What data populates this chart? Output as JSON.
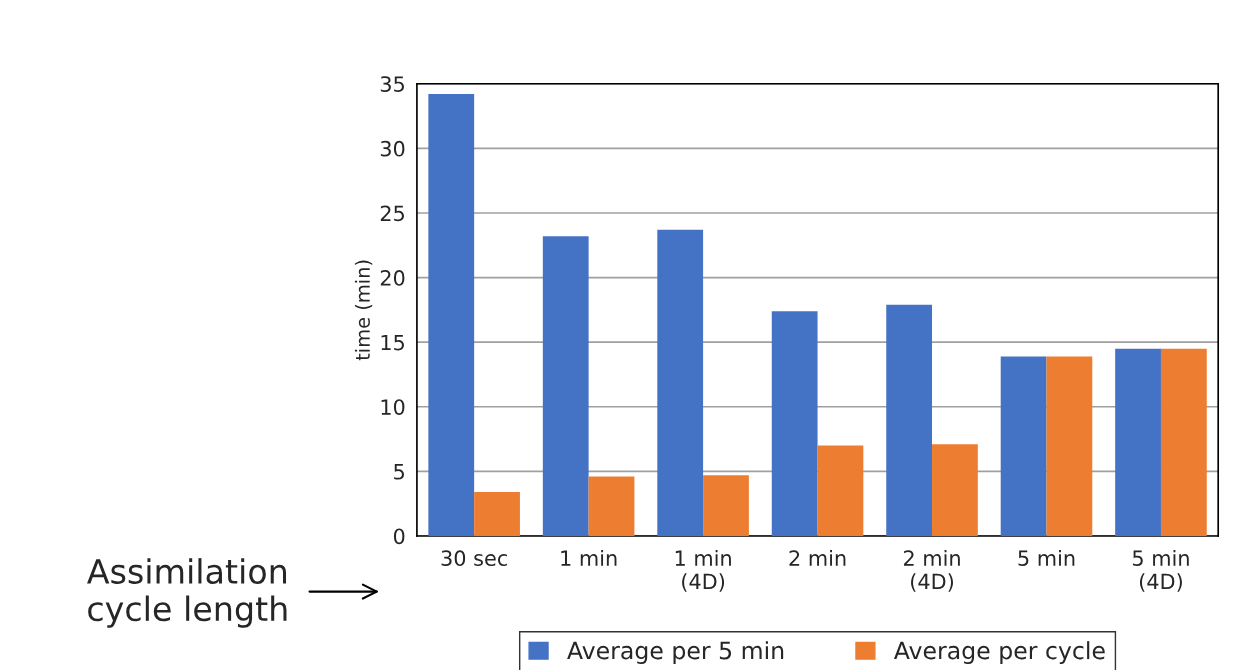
{
  "chart_data": {
    "type": "bar",
    "ylabel": "time (min)",
    "categories": [
      "30 sec",
      "1 min",
      "1 min\n(4D)",
      "2 min",
      "2 min\n(4D)",
      "5 min",
      "5 min\n(4D)"
    ],
    "series": [
      {
        "name": "Average per 5 min",
        "color": "#4472c4",
        "values": [
          34.2,
          23.2,
          23.7,
          17.4,
          17.9,
          13.9,
          14.5
        ]
      },
      {
        "name": "Average per cycle",
        "color": "#ed7d31",
        "values": [
          3.4,
          4.6,
          4.7,
          7.0,
          7.1,
          13.9,
          14.5
        ]
      }
    ],
    "ylim": [
      0,
      35
    ],
    "yticks": [
      0,
      5,
      10,
      15,
      20,
      25,
      30,
      35
    ],
    "grid": "y",
    "legend": "bottom",
    "annotations": [
      "Assimilation\ncycle length"
    ]
  }
}
